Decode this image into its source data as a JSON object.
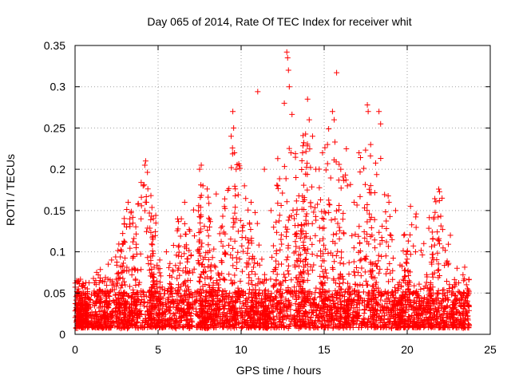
{
  "chart_data": {
    "type": "scatter",
    "title": "Day 065 of 2014, Rate Of TEC Index for receiver whit",
    "xlabel": "GPS time / hours",
    "ylabel": "ROTI / TECUs",
    "xlim": [
      0,
      25
    ],
    "ylim": [
      0,
      0.35
    ],
    "xticks": [
      0,
      5,
      10,
      15,
      20,
      25
    ],
    "yticks": [
      0,
      0.05,
      0.1,
      0.15,
      0.2,
      0.25,
      0.3,
      0.35
    ],
    "x_tick_labels": [
      "0",
      "5",
      "10",
      "15",
      "20",
      "25"
    ],
    "y_tick_labels": [
      "0",
      "0.05",
      "0.1",
      "0.15",
      "0.2",
      "0.25",
      "0.3",
      "0.35"
    ],
    "grid": true,
    "marker": "plus",
    "color": "#ff0000",
    "series": [
      {
        "values": [
          [
            0.1,
            0.065
          ],
          [
            0.2,
            0.055
          ],
          [
            0.4,
            0.048
          ],
          [
            0.6,
            0.04
          ],
          [
            1.3,
            0.075
          ],
          [
            1.4,
            0.072
          ],
          [
            2.0,
            0.085
          ],
          [
            2.2,
            0.09
          ],
          [
            2.9,
            0.11
          ],
          [
            3.1,
            0.13
          ],
          [
            3.2,
            0.16
          ],
          [
            3.3,
            0.14
          ],
          [
            4.1,
            0.18
          ],
          [
            4.2,
            0.205
          ],
          [
            4.25,
            0.21
          ],
          [
            4.3,
            0.16
          ],
          [
            5.1,
            0.09
          ],
          [
            5.5,
            0.1
          ],
          [
            6.4,
            0.14
          ],
          [
            6.6,
            0.16
          ],
          [
            7.5,
            0.2
          ],
          [
            7.6,
            0.205
          ],
          [
            7.7,
            0.18
          ],
          [
            8.1,
            0.13
          ],
          [
            8.5,
            0.17
          ],
          [
            9.4,
            0.24
          ],
          [
            9.5,
            0.27
          ],
          [
            9.55,
            0.25
          ],
          [
            9.6,
            0.22
          ],
          [
            9.7,
            0.2
          ],
          [
            10.2,
            0.18
          ],
          [
            10.6,
            0.16
          ],
          [
            11.0,
            0.294
          ],
          [
            11.4,
            0.2
          ],
          [
            11.8,
            0.15
          ],
          [
            12.2,
            0.18
          ],
          [
            12.6,
            0.28
          ],
          [
            12.75,
            0.342
          ],
          [
            12.8,
            0.335
          ],
          [
            12.85,
            0.32
          ],
          [
            12.9,
            0.3
          ],
          [
            13.0,
            0.22
          ],
          [
            13.3,
            0.19
          ],
          [
            13.7,
            0.22
          ],
          [
            14.0,
            0.285
          ],
          [
            14.1,
            0.26
          ],
          [
            14.3,
            0.24
          ],
          [
            14.5,
            0.2
          ],
          [
            14.9,
            0.22
          ],
          [
            15.2,
            0.23
          ],
          [
            15.5,
            0.27
          ],
          [
            15.6,
            0.26
          ],
          [
            15.75,
            0.317
          ],
          [
            16.0,
            0.2
          ],
          [
            16.4,
            0.18
          ],
          [
            16.8,
            0.16
          ],
          [
            17.1,
            0.22
          ],
          [
            17.6,
            0.278
          ],
          [
            17.65,
            0.27
          ],
          [
            17.8,
            0.23
          ],
          [
            18.3,
            0.27
          ],
          [
            18.4,
            0.255
          ],
          [
            18.9,
            0.16
          ],
          [
            19.3,
            0.15
          ],
          [
            19.8,
            0.12
          ],
          [
            20.2,
            0.155
          ],
          [
            20.5,
            0.1
          ],
          [
            21.0,
            0.11
          ],
          [
            21.6,
            0.14
          ],
          [
            21.9,
            0.176
          ],
          [
            22.1,
            0.165
          ],
          [
            22.6,
            0.12
          ],
          [
            23.0,
            0.08
          ],
          [
            23.4,
            0.065
          ],
          [
            23.7,
            0.05
          ]
        ]
      }
    ]
  }
}
